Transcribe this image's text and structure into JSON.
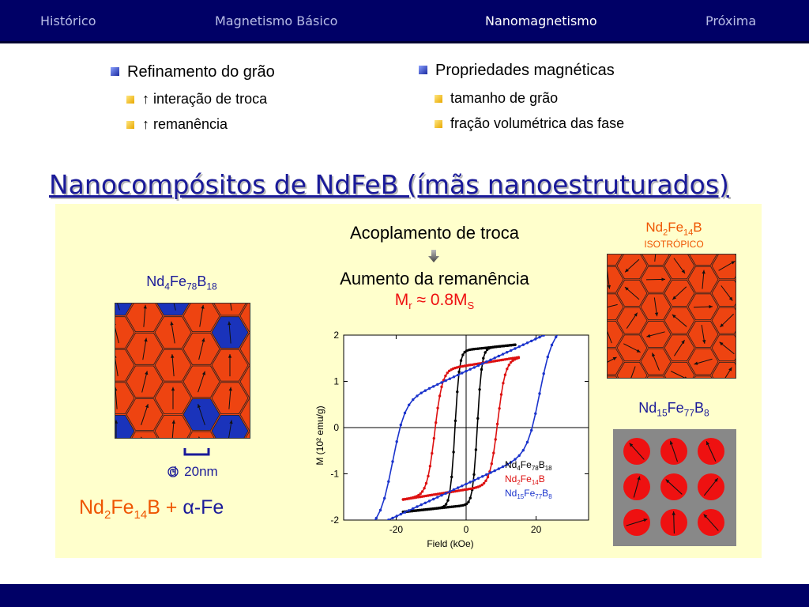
{
  "nav": {
    "items": [
      "Histórico",
      "Magnetismo Básico",
      "Nanomagnetismo",
      "Próxima"
    ],
    "active_index": 2
  },
  "bullets_left": {
    "title": "Refinamento do grão",
    "items": [
      "↑ interação de troca",
      "↑ remanência"
    ]
  },
  "bullets_right": {
    "title": "Propriedades magnéticas",
    "items": [
      "tamanho de grão",
      "fração volumétrica das fase"
    ]
  },
  "heading": "Nanocompósitos de NdFeB  (ímãs nanoestruturados)",
  "center": {
    "line1": "Acoplamento de troca",
    "line2": "Aumento da remanência",
    "mr": "M",
    "mr_sub": "r",
    "mr_mid": " ≈ 0.8M",
    "mr_sub2": "S"
  },
  "left_figure": {
    "label": [
      "Nd",
      "4",
      "Fe",
      "78",
      "B",
      "18"
    ],
    "scale_label": "d  20nm",
    "composite": [
      "Nd",
      "2",
      "Fe",
      "14",
      "B + ",
      "α",
      "-Fe"
    ]
  },
  "right_top_figure": {
    "label": [
      "Nd",
      "2",
      "Fe",
      "14",
      "B"
    ],
    "sublabel": "ISOTRÓPICO"
  },
  "right_bottom_figure": {
    "label": [
      "Nd",
      "15",
      "Fe",
      "77",
      "B",
      "8"
    ]
  },
  "colors": {
    "nav_bg": "#000066",
    "grain_red": "#ee4411",
    "grain_blue": "#1a33bb",
    "panel_bg": "#ffffcc",
    "heading": "#1a1a99",
    "black_series": "#000000",
    "red_series": "#dd1111",
    "blue_series": "#1a33cc"
  },
  "chart_data": {
    "type": "line",
    "title": "",
    "xlabel": "Field (kOe)",
    "ylabel": "M (10² emu/g)",
    "xlim": [
      -35,
      35
    ],
    "ylim": [
      -2,
      2
    ],
    "xticks": [
      -20,
      0,
      20
    ],
    "yticks": [
      -2,
      -1,
      0,
      1,
      2
    ],
    "grid": false,
    "legend_placement": "bottom-right",
    "legend": [
      {
        "label": [
          "Nd",
          "4",
          "Fe",
          "78",
          "B",
          "18"
        ],
        "color": "#000000"
      },
      {
        "label": [
          "Nd",
          "2",
          "Fe",
          "14",
          "B"
        ],
        "color": "#dd1111"
      },
      {
        "label": [
          "Nd",
          "15",
          "Fe",
          "77",
          "B",
          "8"
        ],
        "color": "#1a33cc"
      }
    ],
    "series": [
      {
        "color": "#000000",
        "Ms": 1.68,
        "Hc": 3.2,
        "width": 1.3,
        "slope": 0.008,
        "x_min": -18,
        "x_max": 14
      },
      {
        "color": "#dd1111",
        "Ms": 1.34,
        "Hc": 9.0,
        "width": 2.2,
        "slope": 0.012,
        "x_min": -18,
        "x_max": 15
      },
      {
        "color": "#1a33cc",
        "Ms": 1.22,
        "Hc": 21.0,
        "width": 3.5,
        "slope": 0.035,
        "x_min": -35,
        "x_max": 35
      }
    ]
  }
}
